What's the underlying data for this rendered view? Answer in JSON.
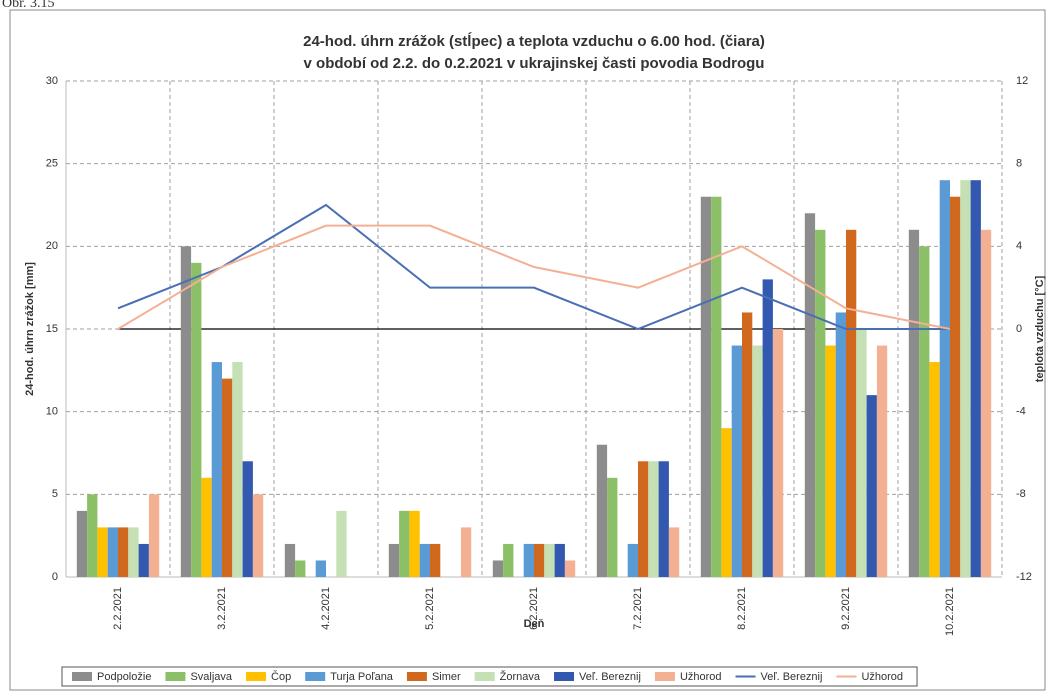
{
  "caption": "Obr. 3.15",
  "chart_data": {
    "type": "bar",
    "title": "24-hod. úhrn zrážok (stĺpec) a teplota vzduchu o 6.00 hod. (čiara)",
    "subtitle": "v období od 2.2. do 0.2.2021 v ukrajinskej časti povodia Bodrogu",
    "x_label": "Deň",
    "y_label": "24-hod. úhrn zrážok [mm]",
    "y2_label": "teplota vzduchu [°C]",
    "categories": [
      "2.2.2021",
      "3.2.2021",
      "4.2.2021",
      "5.2.2021",
      "6.2.2021",
      "7.2.2021",
      "8.2.2021",
      "9.2.2021",
      "10.2.2021"
    ],
    "ylim": [
      0,
      30
    ],
    "yticks": [
      0,
      5,
      10,
      15,
      20,
      25,
      30
    ],
    "y2lim": [
      -12,
      12
    ],
    "y2ticks": [
      -12,
      -8,
      -4,
      0,
      4,
      8,
      12
    ],
    "grid": true,
    "legend": "bottom",
    "series": [
      {
        "name": "Podpoložie",
        "color": "#8c8c8c",
        "values": [
          4,
          20,
          2,
          2,
          1,
          8,
          23,
          22,
          21
        ]
      },
      {
        "name": "Svaljava",
        "color": "#8cc068",
        "values": [
          5,
          19,
          1,
          4,
          2,
          6,
          23,
          21,
          20
        ]
      },
      {
        "name": "Čop",
        "color": "#ffc000",
        "values": [
          3,
          6,
          0,
          4,
          0,
          0,
          9,
          14,
          13
        ]
      },
      {
        "name": "Turja Poľana",
        "color": "#5b9bd5",
        "values": [
          3,
          13,
          1,
          2,
          2,
          2,
          14,
          16,
          24
        ]
      },
      {
        "name": "Simer",
        "color": "#d0691e",
        "values": [
          3,
          12,
          0,
          2,
          2,
          7,
          16,
          21,
          23
        ]
      },
      {
        "name": "Žornava",
        "color": "#c5e0b4",
        "values": [
          3,
          13,
          4,
          0,
          2,
          7,
          14,
          15,
          24
        ]
      },
      {
        "name": "Veľ. Bereznij",
        "color": "#3358b0",
        "values": [
          2,
          7,
          0,
          0,
          2,
          7,
          18,
          11,
          24
        ]
      },
      {
        "name": "Užhorod",
        "color": "#f4b093",
        "values": [
          5,
          5,
          0,
          3,
          1,
          3,
          15,
          14,
          21
        ]
      },
      {
        "name": "Veľ. Bereznij",
        "color": "#4a6fb5",
        "type": "line",
        "axis": "y2",
        "values": [
          1,
          3,
          6,
          2,
          2,
          0,
          2,
          0,
          0
        ]
      },
      {
        "name": "Užhorod",
        "color": "#f4b093",
        "type": "line",
        "axis": "y2",
        "values": [
          0,
          3,
          5,
          5,
          3,
          2,
          4,
          1,
          0
        ]
      }
    ]
  }
}
